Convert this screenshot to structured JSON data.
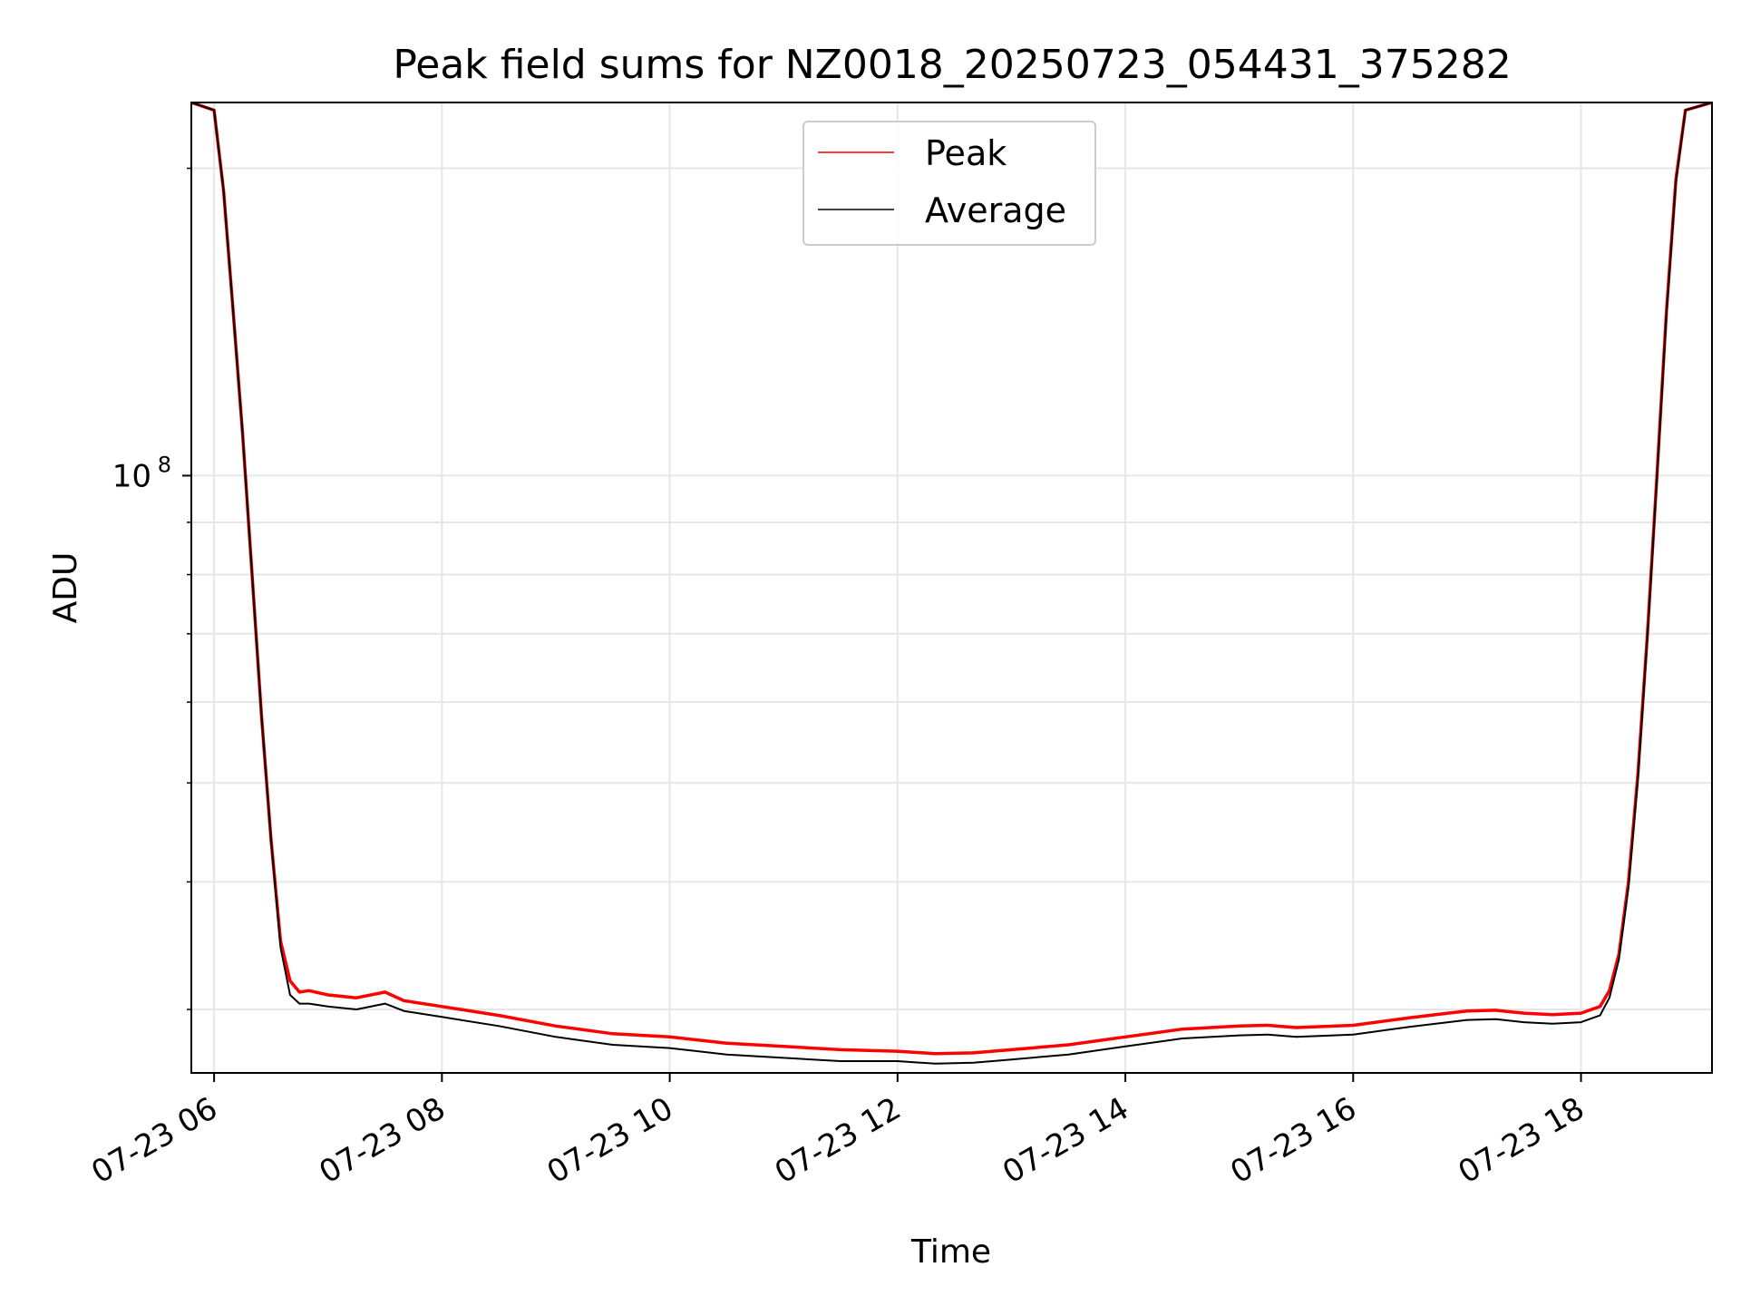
{
  "chart_data": {
    "type": "line",
    "title": "Peak field sums for NZ0018_20250723_054431_375282",
    "xlabel": "Time",
    "ylabel": "ADU",
    "y_scale": "log",
    "grid": true,
    "legend_position": "upper center",
    "x_ticks": [
      "07-23 06",
      "07-23 08",
      "07-23 10",
      "07-23 12",
      "07-23 14",
      "07-23 16",
      "07-23 18"
    ],
    "y_ticks": [
      {
        "value": 100000000,
        "base": "10",
        "exponent": "8"
      }
    ],
    "xlim": [
      "2025-07-23T05:48",
      "2025-07-23T19:09"
    ],
    "ylim": [
      26000000,
      232000000
    ],
    "series": [
      {
        "name": "Peak",
        "color": "#ff0000",
        "x": [
          "2025-07-23T05:48",
          "2025-07-23T06:00",
          "2025-07-23T06:05",
          "2025-07-23T06:10",
          "2025-07-23T06:15",
          "2025-07-23T06:20",
          "2025-07-23T06:25",
          "2025-07-23T06:30",
          "2025-07-23T06:35",
          "2025-07-23T06:40",
          "2025-07-23T06:45",
          "2025-07-23T06:50",
          "2025-07-23T07:00",
          "2025-07-23T07:15",
          "2025-07-23T07:30",
          "2025-07-23T07:40",
          "2025-07-23T08:00",
          "2025-07-23T08:30",
          "2025-07-23T09:00",
          "2025-07-23T09:30",
          "2025-07-23T10:00",
          "2025-07-23T10:30",
          "2025-07-23T11:00",
          "2025-07-23T11:30",
          "2025-07-23T12:00",
          "2025-07-23T12:20",
          "2025-07-23T12:40",
          "2025-07-23T13:00",
          "2025-07-23T13:30",
          "2025-07-23T14:00",
          "2025-07-23T14:30",
          "2025-07-23T15:00",
          "2025-07-23T15:15",
          "2025-07-23T15:30",
          "2025-07-23T16:00",
          "2025-07-23T16:30",
          "2025-07-23T16:50",
          "2025-07-23T17:00",
          "2025-07-23T17:15",
          "2025-07-23T17:30",
          "2025-07-23T17:45",
          "2025-07-23T18:00",
          "2025-07-23T18:10",
          "2025-07-23T18:15",
          "2025-07-23T18:20",
          "2025-07-23T18:25",
          "2025-07-23T18:30",
          "2025-07-23T18:35",
          "2025-07-23T18:40",
          "2025-07-23T18:45",
          "2025-07-23T18:50",
          "2025-07-23T18:55",
          "2025-07-23T19:09"
        ],
        "values": [
          232000000,
          228000000,
          190000000,
          145000000,
          110000000,
          80000000,
          58000000,
          44000000,
          35000000,
          32000000,
          31200000,
          31300000,
          31000000,
          30800000,
          31200000,
          30600000,
          30200000,
          29600000,
          28900000,
          28400000,
          28200000,
          27800000,
          27600000,
          27400000,
          27300000,
          27150000,
          27200000,
          27400000,
          27700000,
          28200000,
          28700000,
          28900000,
          28950000,
          28800000,
          28950000,
          29450000,
          29750000,
          29900000,
          29950000,
          29750000,
          29650000,
          29750000,
          30200000,
          31300000,
          34000000,
          40000000,
          51000000,
          70000000,
          100000000,
          145000000,
          195000000,
          228000000,
          232000000
        ]
      },
      {
        "name": "Average",
        "color": "#000000",
        "x": [
          "2025-07-23T05:48",
          "2025-07-23T06:00",
          "2025-07-23T06:05",
          "2025-07-23T06:10",
          "2025-07-23T06:15",
          "2025-07-23T06:20",
          "2025-07-23T06:25",
          "2025-07-23T06:30",
          "2025-07-23T06:35",
          "2025-07-23T06:40",
          "2025-07-23T06:45",
          "2025-07-23T06:50",
          "2025-07-23T07:00",
          "2025-07-23T07:15",
          "2025-07-23T07:30",
          "2025-07-23T07:40",
          "2025-07-23T08:00",
          "2025-07-23T08:30",
          "2025-07-23T09:00",
          "2025-07-23T09:30",
          "2025-07-23T10:00",
          "2025-07-23T10:30",
          "2025-07-23T11:00",
          "2025-07-23T11:30",
          "2025-07-23T12:00",
          "2025-07-23T12:20",
          "2025-07-23T12:40",
          "2025-07-23T13:00",
          "2025-07-23T13:30",
          "2025-07-23T14:00",
          "2025-07-23T14:30",
          "2025-07-23T15:00",
          "2025-07-23T15:15",
          "2025-07-23T15:30",
          "2025-07-23T16:00",
          "2025-07-23T16:30",
          "2025-07-23T16:50",
          "2025-07-23T17:00",
          "2025-07-23T17:15",
          "2025-07-23T17:30",
          "2025-07-23T17:45",
          "2025-07-23T18:00",
          "2025-07-23T18:10",
          "2025-07-23T18:15",
          "2025-07-23T18:20",
          "2025-07-23T18:25",
          "2025-07-23T18:30",
          "2025-07-23T18:35",
          "2025-07-23T18:40",
          "2025-07-23T18:45",
          "2025-07-23T18:50",
          "2025-07-23T18:55",
          "2025-07-23T19:09"
        ],
        "values": [
          232000000,
          228000000,
          190000000,
          145000000,
          110000000,
          80000000,
          58000000,
          44000000,
          34500000,
          31000000,
          30400000,
          30400000,
          30200000,
          30000000,
          30400000,
          29900000,
          29500000,
          28900000,
          28200000,
          27700000,
          27500000,
          27100000,
          26900000,
          26700000,
          26700000,
          26550000,
          26600000,
          26800000,
          27100000,
          27600000,
          28100000,
          28300000,
          28350000,
          28200000,
          28350000,
          28850000,
          29150000,
          29300000,
          29350000,
          29150000,
          29050000,
          29150000,
          29600000,
          30800000,
          33600000,
          39500000,
          50500000,
          69500000,
          99500000,
          144000000,
          194000000,
          228000000,
          232000000
        ]
      }
    ]
  }
}
